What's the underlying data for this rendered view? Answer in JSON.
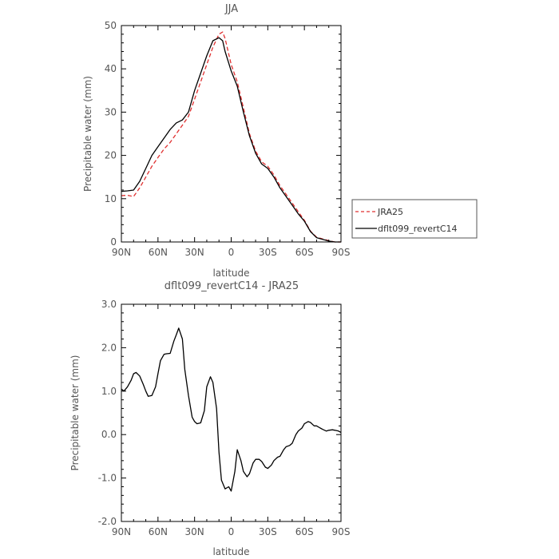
{
  "chart_data": [
    {
      "type": "line",
      "title": "JJA",
      "xlabel": "latitude",
      "ylabel": "Precipitable water (mm)",
      "x_ticks": [
        "90N",
        "60N",
        "30N",
        "0",
        "30S",
        "60S",
        "90S"
      ],
      "x_tick_values": [
        90,
        60,
        30,
        0,
        -30,
        -60,
        -90
      ],
      "xlim": [
        90,
        -90
      ],
      "ylim": [
        0,
        50
      ],
      "y_ticks": [
        "0",
        "10",
        "20",
        "30",
        "40",
        "50"
      ],
      "y_tick_values": [
        0,
        10,
        20,
        30,
        40,
        50
      ],
      "legend_position": "right",
      "series": [
        {
          "name": "JRA25",
          "color": "#e03030",
          "style": "dashed",
          "x": [
            90,
            85,
            80,
            75,
            70,
            65,
            60,
            55,
            50,
            45,
            40,
            35,
            30,
            25,
            20,
            15,
            10,
            7,
            5,
            0,
            -5,
            -10,
            -15,
            -20,
            -25,
            -30,
            -35,
            -40,
            -45,
            -50,
            -55,
            -60,
            -65,
            -70,
            -75,
            -80,
            -85,
            -90
          ],
          "y": [
            10.7,
            10.8,
            10.5,
            12.5,
            15,
            17.5,
            19.5,
            21.5,
            23,
            25,
            27,
            29,
            33,
            37,
            41,
            45,
            48,
            48.5,
            47,
            41,
            37,
            31,
            25,
            21,
            18.5,
            17.5,
            15.5,
            13,
            11,
            9,
            7,
            5,
            2.5,
            1.1,
            0.7,
            0.3,
            0,
            -0.1
          ]
        },
        {
          "name": "dflt099_revertC14",
          "color": "#000000",
          "style": "solid",
          "x": [
            90,
            85,
            80,
            75,
            70,
            65,
            60,
            55,
            50,
            45,
            40,
            35,
            30,
            25,
            20,
            15,
            10,
            7,
            5,
            0,
            -5,
            -10,
            -15,
            -20,
            -25,
            -30,
            -35,
            -40,
            -45,
            -50,
            -55,
            -60,
            -65,
            -70,
            -75,
            -80,
            -85,
            -90
          ],
          "y": [
            11.7,
            11.8,
            12,
            14,
            17,
            20,
            22,
            24,
            26,
            27.5,
            28.2,
            30,
            35,
            39,
            43,
            46.5,
            47.2,
            46.5,
            44,
            39.5,
            36,
            30,
            24.5,
            20.5,
            18,
            17,
            15,
            12.5,
            10.5,
            8.5,
            6.5,
            4.8,
            2.4,
            1,
            0.6,
            0.2,
            0,
            -0.2
          ]
        }
      ]
    },
    {
      "type": "line",
      "title": "dflt099_revertC14 - JRA25",
      "xlabel": "latitude",
      "ylabel": "Precipitable water (mm)",
      "x_ticks": [
        "90N",
        "60N",
        "30N",
        "0",
        "30S",
        "60S",
        "90S"
      ],
      "x_tick_values": [
        90,
        60,
        30,
        0,
        -30,
        -60,
        -90
      ],
      "xlim": [
        90,
        -90
      ],
      "ylim": [
        -2,
        3
      ],
      "y_ticks": [
        "-2.0",
        "-1.0",
        "0.0",
        "1.0",
        "2.0",
        "3.0"
      ],
      "y_tick_values": [
        -2,
        -1,
        0,
        1,
        2,
        3
      ],
      "series": [
        {
          "color": "#000000",
          "style": "solid",
          "x": [
            90,
            88,
            85,
            82,
            80,
            78,
            75,
            72,
            70,
            68,
            65,
            62,
            60,
            58,
            55,
            53,
            50,
            47,
            45,
            43,
            40,
            38,
            35,
            32,
            30,
            28,
            25,
            22,
            20,
            17,
            15,
            12,
            10,
            8,
            5,
            2,
            0,
            -3,
            -5,
            -8,
            -10,
            -13,
            -15,
            -18,
            -20,
            -23,
            -25,
            -28,
            -30,
            -33,
            -35,
            -38,
            -40,
            -43,
            -45,
            -48,
            -50,
            -53,
            -55,
            -58,
            -60,
            -63,
            -65,
            -68,
            -70,
            -73,
            -75,
            -78,
            -80,
            -83,
            -85,
            -88,
            -90
          ],
          "y": [
            1.05,
            1.0,
            1.1,
            1.25,
            1.4,
            1.43,
            1.35,
            1.15,
            1.0,
            0.88,
            0.9,
            1.1,
            1.4,
            1.7,
            1.85,
            1.86,
            1.87,
            2.15,
            2.3,
            2.45,
            2.2,
            1.5,
            0.9,
            0.4,
            0.3,
            0.25,
            0.27,
            0.55,
            1.1,
            1.33,
            1.2,
            0.6,
            -0.4,
            -1.05,
            -1.25,
            -1.2,
            -1.3,
            -0.85,
            -0.35,
            -0.6,
            -0.85,
            -0.97,
            -0.9,
            -0.65,
            -0.57,
            -0.57,
            -0.62,
            -0.75,
            -0.78,
            -0.7,
            -0.6,
            -0.52,
            -0.5,
            -0.35,
            -0.28,
            -0.25,
            -0.2,
            0.0,
            0.08,
            0.15,
            0.25,
            0.3,
            0.28,
            0.2,
            0.2,
            0.15,
            0.12,
            0.08,
            0.1,
            0.11,
            0.1,
            0.08,
            0.05
          ]
        }
      ]
    }
  ]
}
